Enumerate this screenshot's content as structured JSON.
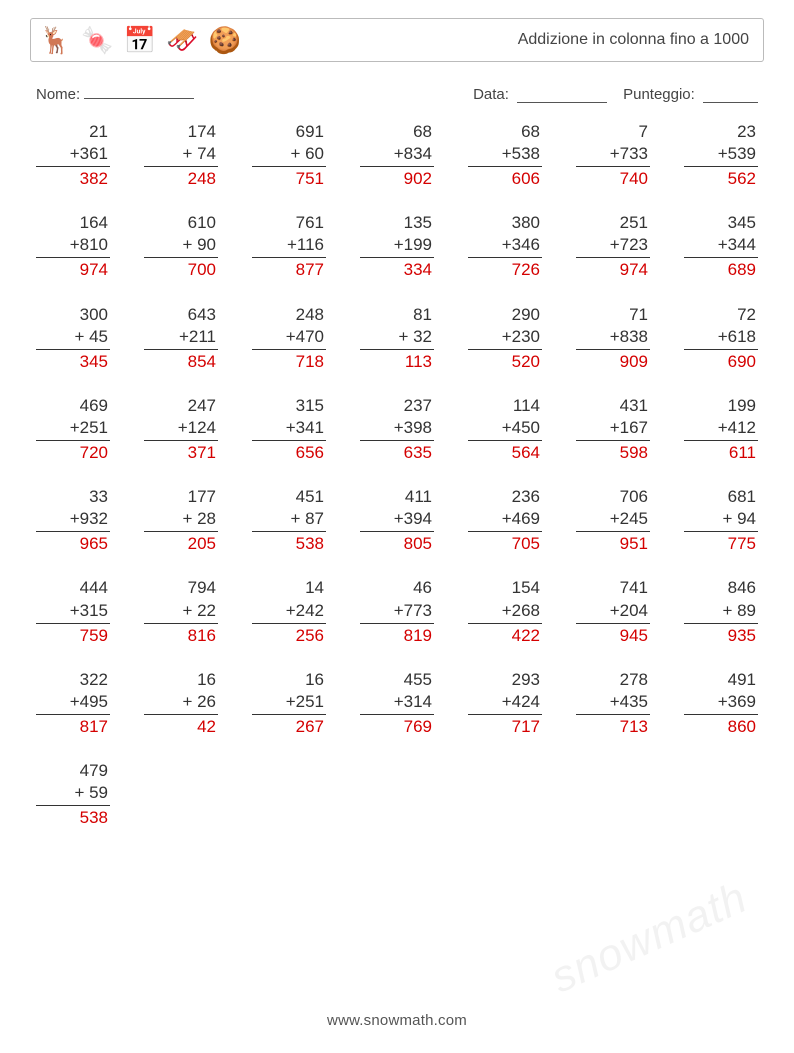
{
  "header": {
    "title": "Addizione in colonna fino a 1000",
    "icons": [
      "🦌",
      "🍬",
      "📅",
      "🛷",
      "🍪"
    ]
  },
  "info": {
    "name_label": "Nome:",
    "date_label": "Data:",
    "score_label": "Punteggio:"
  },
  "style": {
    "page_bg": "#ffffff",
    "text_color": "#333333",
    "border_color": "#bbbbbb",
    "answer_color": "#d40000",
    "rule_color": "#333333",
    "font_family": "Arial, Helvetica, sans-serif",
    "title_fontsize": 16,
    "problem_fontsize": 17,
    "columns": 7,
    "rows": 8
  },
  "footer": "www.snowmath.com",
  "watermark": "snowmath",
  "problems": [
    {
      "a": 21,
      "b": 361,
      "sum": 382
    },
    {
      "a": 174,
      "b": 74,
      "sum": 248
    },
    {
      "a": 691,
      "b": 60,
      "sum": 751
    },
    {
      "a": 68,
      "b": 834,
      "sum": 902
    },
    {
      "a": 68,
      "b": 538,
      "sum": 606
    },
    {
      "a": 7,
      "b": 733,
      "sum": 740
    },
    {
      "a": 23,
      "b": 539,
      "sum": 562
    },
    {
      "a": 164,
      "b": 810,
      "sum": 974
    },
    {
      "a": 610,
      "b": 90,
      "sum": 700
    },
    {
      "a": 761,
      "b": 116,
      "sum": 877
    },
    {
      "a": 135,
      "b": 199,
      "sum": 334
    },
    {
      "a": 380,
      "b": 346,
      "sum": 726
    },
    {
      "a": 251,
      "b": 723,
      "sum": 974
    },
    {
      "a": 345,
      "b": 344,
      "sum": 689
    },
    {
      "a": 300,
      "b": 45,
      "sum": 345
    },
    {
      "a": 643,
      "b": 211,
      "sum": 854
    },
    {
      "a": 248,
      "b": 470,
      "sum": 718
    },
    {
      "a": 81,
      "b": 32,
      "sum": 113
    },
    {
      "a": 290,
      "b": 230,
      "sum": 520
    },
    {
      "a": 71,
      "b": 838,
      "sum": 909
    },
    {
      "a": 72,
      "b": 618,
      "sum": 690
    },
    {
      "a": 469,
      "b": 251,
      "sum": 720
    },
    {
      "a": 247,
      "b": 124,
      "sum": 371
    },
    {
      "a": 315,
      "b": 341,
      "sum": 656
    },
    {
      "a": 237,
      "b": 398,
      "sum": 635
    },
    {
      "a": 114,
      "b": 450,
      "sum": 564
    },
    {
      "a": 431,
      "b": 167,
      "sum": 598
    },
    {
      "a": 199,
      "b": 412,
      "sum": 611
    },
    {
      "a": 33,
      "b": 932,
      "sum": 965
    },
    {
      "a": 177,
      "b": 28,
      "sum": 205
    },
    {
      "a": 451,
      "b": 87,
      "sum": 538
    },
    {
      "a": 411,
      "b": 394,
      "sum": 805
    },
    {
      "a": 236,
      "b": 469,
      "sum": 705
    },
    {
      "a": 706,
      "b": 245,
      "sum": 951
    },
    {
      "a": 681,
      "b": 94,
      "sum": 775
    },
    {
      "a": 444,
      "b": 315,
      "sum": 759
    },
    {
      "a": 794,
      "b": 22,
      "sum": 816
    },
    {
      "a": 14,
      "b": 242,
      "sum": 256
    },
    {
      "a": 46,
      "b": 773,
      "sum": 819
    },
    {
      "a": 154,
      "b": 268,
      "sum": 422
    },
    {
      "a": 741,
      "b": 204,
      "sum": 945
    },
    {
      "a": 846,
      "b": 89,
      "sum": 935
    },
    {
      "a": 322,
      "b": 495,
      "sum": 817
    },
    {
      "a": 16,
      "b": 26,
      "sum": 42
    },
    {
      "a": 16,
      "b": 251,
      "sum": 267
    },
    {
      "a": 455,
      "b": 314,
      "sum": 769
    },
    {
      "a": 293,
      "b": 424,
      "sum": 717
    },
    {
      "a": 278,
      "b": 435,
      "sum": 713
    },
    {
      "a": 491,
      "b": 369,
      "sum": 860
    },
    {
      "a": 479,
      "b": 59,
      "sum": 538
    }
  ]
}
